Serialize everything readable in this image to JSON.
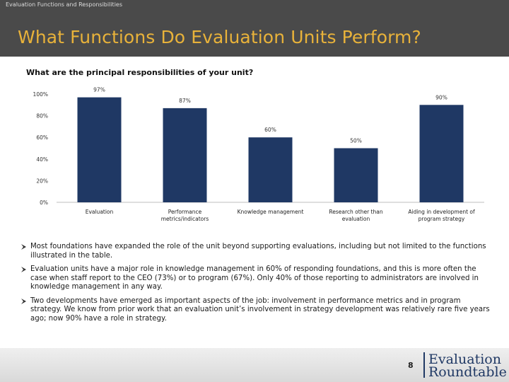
{
  "header": {
    "eyebrow": "Evaluation Functions and Responsibilities",
    "title": "What Functions Do Evaluation Units Perform?",
    "background": "#4a4a4a",
    "title_color": "#e8b23a"
  },
  "question": "What are the principal responsibilities of your unit?",
  "chart_data": {
    "type": "bar",
    "title": "",
    "xlabel": "",
    "ylabel": "",
    "ylim": [
      0,
      100
    ],
    "y_ticks": [
      "0%",
      "20%",
      "40%",
      "60%",
      "80%",
      "100%"
    ],
    "y_tick_values": [
      0,
      20,
      40,
      60,
      80,
      100
    ],
    "categories": [
      [
        "Evaluation"
      ],
      [
        "Performance",
        "metrics/indicators"
      ],
      [
        "Knowledge management"
      ],
      [
        "Research other than",
        "evaluation"
      ],
      [
        "Aiding in development of",
        "program strategy"
      ]
    ],
    "values": [
      97,
      87,
      60,
      50,
      90
    ],
    "value_labels": [
      "97%",
      "87%",
      "60%",
      "50%",
      "90%"
    ],
    "bar_color": "#1f3864",
    "grid": false
  },
  "bullets": [
    "Most foundations have expanded the role of the unit beyond supporting evaluations, including but not limited to the functions illustrated in the table.",
    "Evaluation units have a major role in knowledge management in 60% of responding foundations, and this is more often the case when staff report to the CEO (73%) or to program (67%). Only 40% of those reporting to administrators are involved in knowledge management in any way.",
    "Two developments have emerged as important aspects of the job: involvement in performance metrics and in program strategy.  We know from prior work that an evaluation unit’s involvement in strategy development was relatively rare five years ago; now 90% have a role in strategy."
  ],
  "footer": {
    "page_number": "8",
    "logo_line1": "Evaluation",
    "logo_line2": "Roundtable",
    "logo_color": "#1f3864"
  }
}
